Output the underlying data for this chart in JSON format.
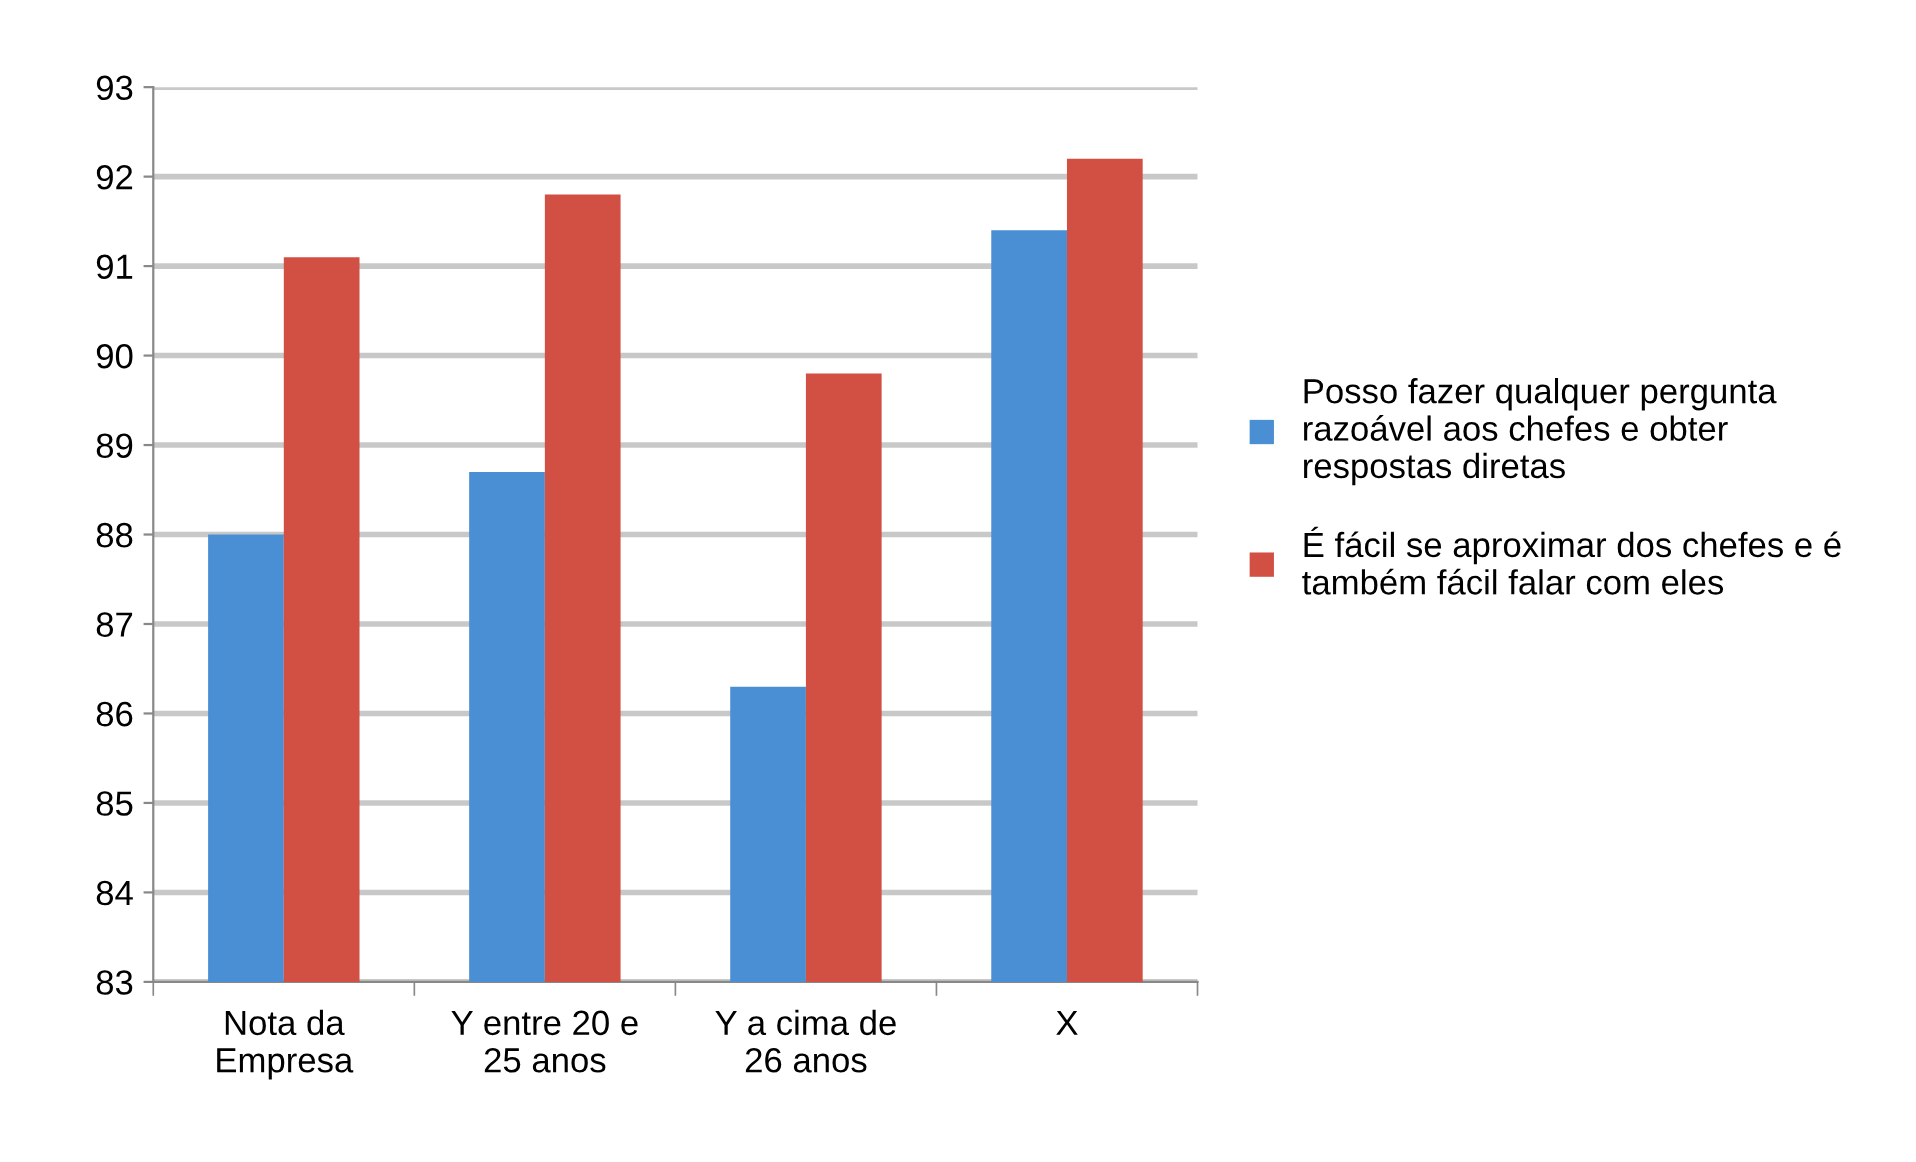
{
  "chart_data": {
    "type": "bar",
    "categories": [
      "Nota da\nEmpresa",
      "Y entre 20 e\n25 anos",
      "Y a cima de\n26 anos",
      "X"
    ],
    "series": [
      {
        "name": "Posso fazer qualquer pergunta razoável aos chefes e obter respostas diretas",
        "color": "#4a8ed4",
        "values": [
          88.0,
          88.7,
          86.3,
          91.4
        ]
      },
      {
        "name": "É fácil se aproximar dos chefes e é também fácil falar com eles",
        "color": "#d24f43",
        "values": [
          91.1,
          91.8,
          89.8,
          92.2
        ]
      }
    ],
    "ylim": [
      83,
      93
    ],
    "yticks": [
      83,
      84,
      85,
      86,
      87,
      88,
      89,
      90,
      91,
      92,
      93
    ],
    "grid": "y",
    "legend": "right"
  }
}
